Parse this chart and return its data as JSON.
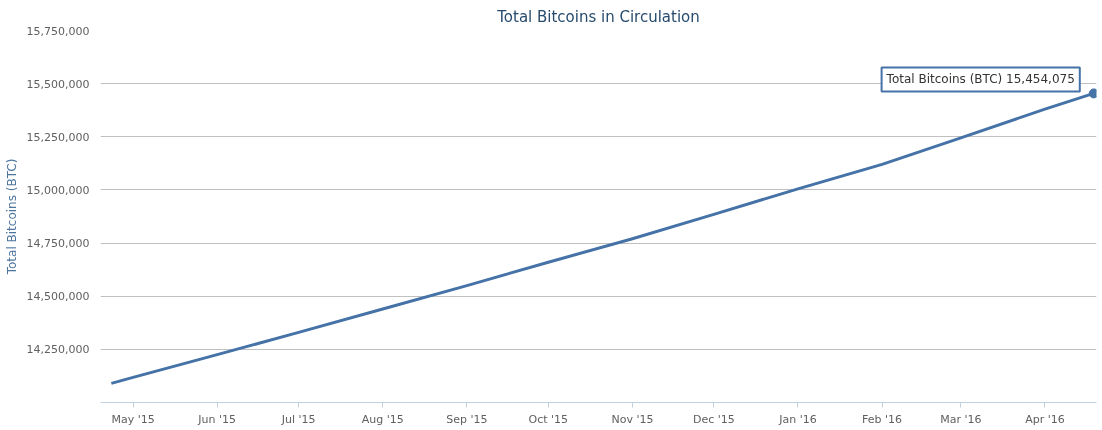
{
  "chart_data": {
    "type": "line",
    "title": "Total Bitcoins in Circulation",
    "ylabel": "Total Bitcoins (BTC)",
    "x": [
      "2015-04-23",
      "2015-05-01",
      "2015-06-01",
      "2015-07-01",
      "2015-08-01",
      "2015-09-01",
      "2015-10-01",
      "2015-11-01",
      "2015-12-01",
      "2016-01-01",
      "2016-02-01",
      "2016-03-01",
      "2016-04-01",
      "2016-04-19"
    ],
    "series": [
      {
        "color": "#4572a7",
        "values": [
          14090000,
          14118000,
          14225000,
          14330000,
          14440000,
          14550000,
          14660000,
          14770000,
          14885000,
          15005000,
          15120000,
          15245000,
          15380000,
          15454075
        ]
      }
    ],
    "annotations": [
      {
        "text": "Total Bitcoins (BTC) 15,454,075",
        "x": "2016-04-19",
        "y": 15454075
      }
    ],
    "xlim": [
      "2015-04-19",
      "2016-04-20"
    ],
    "xticks": [
      {
        "value": "2015-05-01",
        "label": "May '15"
      },
      {
        "value": "2015-06-01",
        "label": "Jun '15"
      },
      {
        "value": "2015-07-01",
        "label": "Jul '15"
      },
      {
        "value": "2015-08-01",
        "label": "Aug '15"
      },
      {
        "value": "2015-09-01",
        "label": "Sep '15"
      },
      {
        "value": "2015-10-01",
        "label": "Oct '15"
      },
      {
        "value": "2015-11-01",
        "label": "Nov '15"
      },
      {
        "value": "2015-12-01",
        "label": "Dec '15"
      },
      {
        "value": "2016-01-01",
        "label": "Jan '16"
      },
      {
        "value": "2016-02-01",
        "label": "Feb '16"
      },
      {
        "value": "2016-03-01",
        "label": "Mar '16"
      },
      {
        "value": "2016-04-01",
        "label": "Apr '16"
      }
    ],
    "ylim": [
      14000000,
      15750000
    ],
    "yticks": [
      {
        "value": 14000000,
        "label": null
      },
      {
        "value": 14250000,
        "label": "14,250,000"
      },
      {
        "value": 14500000,
        "label": "14,500,000"
      },
      {
        "value": 14750000,
        "label": "14,750,000"
      },
      {
        "value": 15000000,
        "label": "15,000,000"
      },
      {
        "value": 15250000,
        "label": "15,250,000"
      },
      {
        "value": 15500000,
        "label": "15,500,000"
      },
      {
        "value": 15750000,
        "label": "15,750,000"
      }
    ],
    "grid": "y",
    "marker": "none",
    "line_style": "solid"
  }
}
